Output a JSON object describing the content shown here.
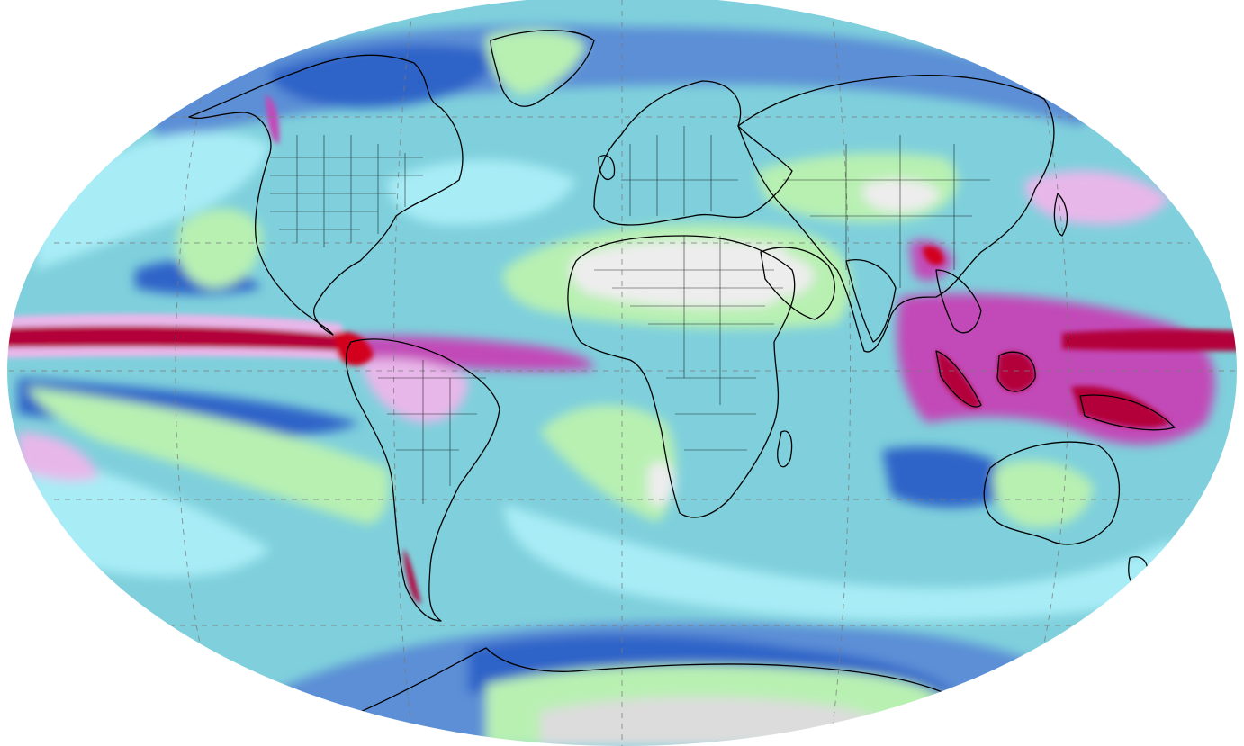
{
  "map": {
    "projection": "robinson",
    "colors": {
      "ocean_base": "#7fd0dc",
      "ocean_light": "#a8ecf6",
      "pale": "#d6f6f7",
      "medium_blue": "#5b8fd6",
      "deep_blue": "#2f63c8",
      "green": "#b8f0b2",
      "green_dark": "#8fdc9a",
      "desert_white": "#ededed",
      "desert_gray": "#dcdcdc",
      "lavender": "#e8b7ea",
      "magenta": "#c24ab8",
      "crimson": "#b3063a",
      "red": "#d2001f",
      "coast": "#000000",
      "grid": "#7a7a7a"
    },
    "features": [
      "equatorial-pacific-rain-band",
      "itcz-atlantic",
      "maritime-continent-wet-zone",
      "sahara-dry-zone",
      "arabia-dry-zone",
      "south-atlantic-dry-zone",
      "southeast-pacific-dry-zone",
      "australia-dry-zone",
      "central-asia-dry-zone",
      "antarctica-dry-zone",
      "northeast-pacific-dry-zone",
      "greenland"
    ]
  }
}
